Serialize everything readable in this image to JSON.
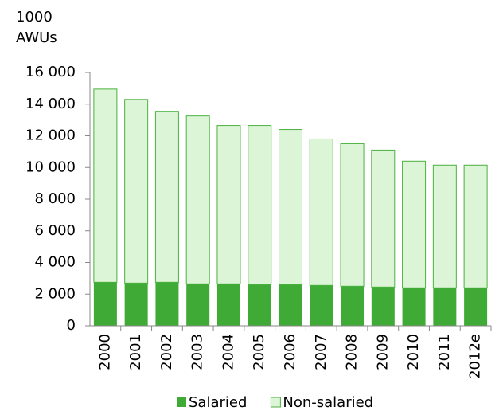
{
  "chart_data": {
    "type": "stacked-bar",
    "ylabel": [
      "1000",
      "AWUs"
    ],
    "categories": [
      "2000",
      "2001",
      "2002",
      "2003",
      "2004",
      "2005",
      "2006",
      "2007",
      "2008",
      "2009",
      "2010",
      "2011",
      "2012e"
    ],
    "series": [
      {
        "name": "Salaried",
        "color": "#3faa35",
        "values": [
          2750,
          2700,
          2750,
          2650,
          2650,
          2600,
          2600,
          2550,
          2500,
          2450,
          2400,
          2400,
          2400
        ]
      },
      {
        "name": "Non-salaried",
        "color": "#dcf5d6",
        "values": [
          12200,
          11600,
          10800,
          10600,
          10000,
          10050,
          9800,
          9250,
          9000,
          8650,
          8000,
          7750,
          7750
        ]
      }
    ],
    "ylim": [
      0,
      16000
    ],
    "yticks": [
      0,
      {
        "value": 2000,
        "label": "2 000"
      },
      {
        "value": 4000,
        "label": "4 000"
      },
      {
        "value": 6000,
        "label": "6 000"
      },
      {
        "value": 8000,
        "label": "8 000"
      },
      {
        "value": 10000,
        "label": "10 000"
      },
      {
        "value": 12000,
        "label": "12 000"
      },
      {
        "value": 14000,
        "label": "14 000"
      },
      {
        "value": 16000,
        "label": "16 000"
      }
    ],
    "legend": "bottom"
  }
}
